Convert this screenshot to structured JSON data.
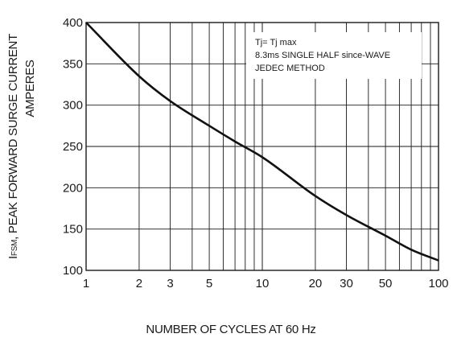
{
  "chart_data": {
    "type": "line",
    "title": "",
    "xlabel": "NUMBER OF CYCLES AT 60 Hz",
    "ylabel": {
      "symbol_main": "I",
      "symbol_sub": "FSM",
      "line1": ",  PEAK FORWARD SURGE CURRENT",
      "line2": "AMPERES"
    },
    "x_scale": "log",
    "xlim": [
      1,
      100
    ],
    "ylim": [
      100,
      400
    ],
    "x_ticks": [
      1,
      2,
      3,
      5,
      10,
      20,
      30,
      50,
      100
    ],
    "x_tick_labels": [
      "1",
      "2",
      "3",
      "5",
      "10",
      "20",
      "30",
      "50",
      "100"
    ],
    "y_ticks": [
      100,
      150,
      200,
      250,
      300,
      350,
      400
    ],
    "y_tick_labels": [
      "100",
      "150",
      "200",
      "250",
      "300",
      "350",
      "400"
    ],
    "grid": true,
    "series": [
      {
        "name": "",
        "x": [
          1,
          2,
          3,
          5,
          7,
          10,
          20,
          30,
          50,
          70,
          100
        ],
        "y": [
          400,
          335,
          305,
          275,
          256,
          237,
          190,
          167,
          142,
          125,
          112
        ]
      }
    ],
    "annotation": [
      "Tj= Tj max",
      "8.3ms SINGLE HALF since-WAVE",
      "JEDEC METHOD"
    ]
  }
}
